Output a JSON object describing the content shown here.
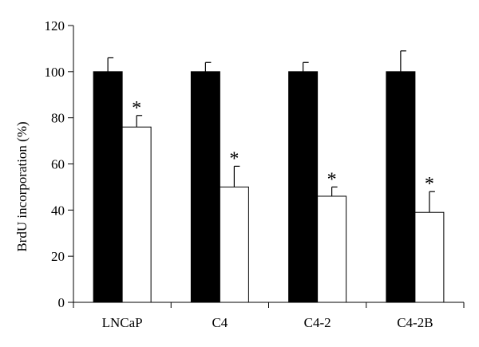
{
  "chart_data": {
    "type": "bar",
    "ylabel": "BrdU incorporation (%)",
    "xlabel": "",
    "ylim": [
      0,
      120
    ],
    "yticks": [
      0,
      20,
      40,
      60,
      80,
      100,
      120
    ],
    "grid": false,
    "categories": [
      "LNCaP",
      "C4",
      "C4-2",
      "C4-2B"
    ],
    "series": [
      {
        "values": [
          100,
          100,
          100,
          100
        ],
        "errors": [
          6,
          4,
          4,
          9
        ],
        "color": "#000000"
      },
      {
        "values": [
          76,
          50,
          46,
          39
        ],
        "errors": [
          5,
          9,
          4,
          9
        ],
        "color": "#ffffff"
      }
    ],
    "annotations": [
      "*",
      "*",
      "*",
      "*"
    ]
  }
}
